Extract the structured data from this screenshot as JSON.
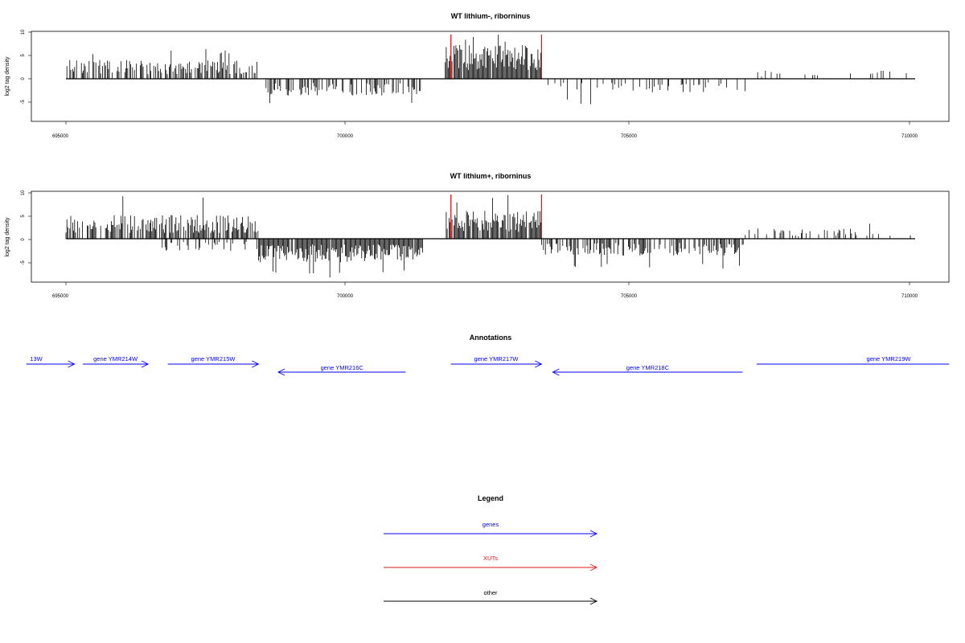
{
  "chart_data": [
    {
      "type": "bar",
      "title": "WT lithium-, riborninus",
      "ylabel": "log2 tag density",
      "xlim": [
        695000,
        710000
      ],
      "ylim": [
        -9,
        10
      ],
      "xticks": [
        "695000",
        "700000",
        "705000",
        "710000"
      ],
      "yticks": [
        "10",
        "5",
        "0",
        "-5"
      ],
      "highlight_lines_x": [
        701800,
        703400
      ],
      "highlight_color": "#e31a1c",
      "bar_color": "#000000",
      "segments": [
        {
          "start": 695000,
          "end": 698400,
          "sign": 1,
          "mean": 2.8,
          "max": 6.5,
          "density": 0.55
        },
        {
          "start": 698500,
          "end": 701300,
          "sign": -1,
          "mean": 2.5,
          "max": 6,
          "density": 0.5
        },
        {
          "start": 701700,
          "end": 703400,
          "sign": 1,
          "mean": 5,
          "max": 9.5,
          "density": 0.95
        },
        {
          "start": 703500,
          "end": 707000,
          "sign": -1,
          "mean": 2,
          "max": 5.5,
          "density": 0.25
        },
        {
          "start": 707100,
          "end": 710000,
          "sign": 1,
          "mean": 1.2,
          "max": 3,
          "density": 0.08
        }
      ]
    },
    {
      "type": "bar",
      "title": "WT lithium+, riborninus",
      "ylabel": "log2 tag density",
      "xlim": [
        695000,
        710000
      ],
      "ylim": [
        -9,
        10
      ],
      "xticks": [
        "695000",
        "700000",
        "705000",
        "710000"
      ],
      "yticks": [
        "10",
        "5",
        "0",
        "-5"
      ],
      "highlight_lines_x": [
        701800,
        703400
      ],
      "highlight_color": "#e31a1c",
      "bar_color": "#000000",
      "segments": [
        {
          "start": 695000,
          "end": 698400,
          "sign": 1,
          "mean": 3.5,
          "max": 9.5,
          "density": 0.75
        },
        {
          "start": 696700,
          "end": 698400,
          "sign": -1,
          "mean": 1.8,
          "max": 4,
          "density": 0.35
        },
        {
          "start": 698400,
          "end": 701300,
          "sign": -1,
          "mean": 3.5,
          "max": 8.5,
          "density": 0.95
        },
        {
          "start": 701700,
          "end": 703400,
          "sign": 1,
          "mean": 4.2,
          "max": 9.5,
          "density": 0.9
        },
        {
          "start": 703400,
          "end": 707000,
          "sign": -1,
          "mean": 2.5,
          "max": 6.5,
          "density": 0.55
        },
        {
          "start": 707000,
          "end": 710000,
          "sign": 1,
          "mean": 1.5,
          "max": 3.5,
          "density": 0.2
        }
      ]
    }
  ],
  "annotations": {
    "title": "Annotations",
    "xlim": [
      695000,
      710000
    ],
    "genes": [
      {
        "label": "13W",
        "start": 694300,
        "end": 695150,
        "strand": "+",
        "row": 0
      },
      {
        "label": "gene YMR214W",
        "start": 695300,
        "end": 696450,
        "strand": "+",
        "row": 0
      },
      {
        "label": "gene YMR215W",
        "start": 696800,
        "end": 698400,
        "strand": "+",
        "row": 0
      },
      {
        "label": "gene YMR216C",
        "start": 698750,
        "end": 701000,
        "strand": "-",
        "row": 1
      },
      {
        "label": "gene YMR217W",
        "start": 701800,
        "end": 703400,
        "strand": "+",
        "row": 0
      },
      {
        "label": "gene YMR218C",
        "start": 703600,
        "end": 706950,
        "strand": "-",
        "row": 1
      },
      {
        "label": "gene YMR219W",
        "start": 707200,
        "end": 710600,
        "strand": "+",
        "row": 0
      }
    ],
    "gene_color": "#0000ff"
  },
  "legend": {
    "title": "Legend",
    "items": [
      {
        "label": "genes",
        "color": "#0000ff"
      },
      {
        "label": "XUTs",
        "color": "#e31a1c"
      },
      {
        "label": "other",
        "color": "#000000"
      }
    ]
  }
}
